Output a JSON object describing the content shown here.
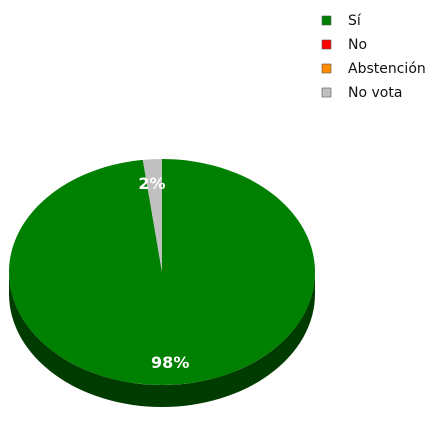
{
  "chart_data": {
    "type": "pie",
    "style": "3d",
    "start_angle_deg": 90,
    "direction": "clockwise",
    "legend_position": "top-right",
    "slices": [
      {
        "label": "Sí",
        "value": 98,
        "data_label": "98%",
        "color": "#008000",
        "side_color": "#003c00"
      },
      {
        "label": "No",
        "value": 0,
        "data_label": "",
        "color": "#ff0000",
        "side_color": "#800000"
      },
      {
        "label": "Abstención",
        "value": 0,
        "data_label": "",
        "color": "#ff8c00",
        "side_color": "#804600"
      },
      {
        "label": "No vota",
        "value": 2,
        "data_label": "2%",
        "color": "#c0c0c0",
        "side_color": "#606060"
      }
    ]
  }
}
